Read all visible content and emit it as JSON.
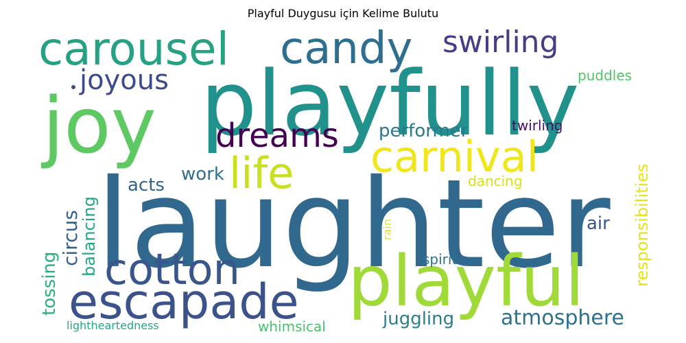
{
  "title": "Playful Duygusu için Kelime Bulutu",
  "words": [
    {
      "text": "laughter",
      "color": "#31688e"
    },
    {
      "text": "playfully",
      "color": "#21918c"
    },
    {
      "text": "joy",
      "color": "#5ec962"
    },
    {
      "text": "playful",
      "color": "#a0da39"
    },
    {
      "text": "carousel",
      "color": "#26a184"
    },
    {
      "text": "escapade",
      "color": "#3b528b"
    },
    {
      "text": "candy",
      "color": "#2e6e8e"
    },
    {
      "text": "cotton",
      "color": "#39568c"
    },
    {
      "text": "carnival",
      "color": "#f1e51d"
    },
    {
      "text": "life",
      "color": "#c8e020"
    },
    {
      "text": "dreams",
      "color": "#440154"
    },
    {
      "text": "swirling",
      "color": "#433e85"
    },
    {
      "text": "joyous",
      "color": "#3e4a89"
    },
    {
      "text": "atmosphere",
      "color": "#2c728e"
    },
    {
      "text": "performer",
      "color": "#2a788e"
    },
    {
      "text": "responsibilities",
      "color": "#e5e419"
    },
    {
      "text": "juggling",
      "color": "#277f8e"
    },
    {
      "text": "tossing",
      "color": "#2ab07f"
    },
    {
      "text": "circus",
      "color": "#355f8d"
    },
    {
      "text": "balancing",
      "color": "#21a685"
    },
    {
      "text": "acts",
      "color": "#33638d"
    },
    {
      "text": "work",
      "color": "#2e6f8e"
    },
    {
      "text": "air",
      "color": "#3b528b"
    },
    {
      "text": "spirit",
      "color": "#2c738e"
    },
    {
      "text": "puddles",
      "color": "#52c569"
    },
    {
      "text": "twirling",
      "color": "#471063"
    },
    {
      "text": "dancing",
      "color": "#d8e219"
    },
    {
      "text": "rain",
      "color": "#e2e418"
    },
    {
      "text": "whimsical",
      "color": "#4ac16d"
    },
    {
      "text": "lightheartedness",
      "color": "#22a884"
    }
  ]
}
